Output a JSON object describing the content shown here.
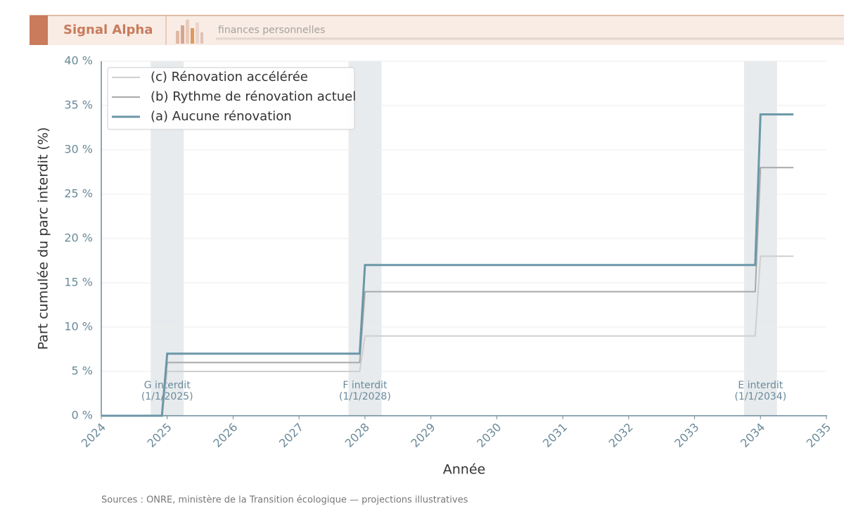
{
  "header": {
    "brand": "Signal Alpha",
    "tagline": "finances personnelles"
  },
  "chart_data": {
    "type": "line",
    "x_label": "Année",
    "y_label": "Part cumulée du parc interdit (%)",
    "x": [
      2024,
      2024.92,
      2025.0,
      2027.92,
      2028.0,
      2033.92,
      2034.0,
      2034.5
    ],
    "series": [
      {
        "name": "(c) Rénovation accélérée",
        "color": "#cfcfcf",
        "values": [
          0,
          0,
          5,
          5,
          9,
          9,
          18,
          18
        ]
      },
      {
        "name": "(b) Rythme de rénovation actuel",
        "color": "#a9a9a9",
        "values": [
          0,
          0,
          6,
          6,
          14,
          14,
          28,
          28
        ]
      },
      {
        "name": "(a) Aucune rénovation",
        "color": "#6b97a8",
        "values": [
          0,
          0,
          7,
          7,
          17,
          17,
          34,
          34
        ]
      }
    ],
    "annotations": [
      {
        "label": "G interdit",
        "date": "(1/1/2025)",
        "x": 2025,
        "band": [
          2024.75,
          2025.25
        ]
      },
      {
        "label": "F interdit",
        "date": "(1/1/2028)",
        "x": 2028,
        "band": [
          2027.75,
          2028.25
        ]
      },
      {
        "label": "E interdit",
        "date": "(1/1/2034)",
        "x": 2034,
        "band": [
          2033.75,
          2034.25
        ]
      }
    ],
    "xlim": [
      2024,
      2035
    ],
    "xticks": [
      2024,
      2025,
      2026,
      2027,
      2028,
      2029,
      2030,
      2031,
      2032,
      2033,
      2034,
      2035
    ],
    "ylim": [
      0,
      40
    ],
    "yticks": [
      {
        "value": 0,
        "label": "0 %"
      },
      {
        "value": 5,
        "label": "5 %"
      },
      {
        "value": 10,
        "label": "10 %"
      },
      {
        "value": 15,
        "label": "15 %"
      },
      {
        "value": 20,
        "label": "20 %"
      },
      {
        "value": 25,
        "label": "25 %"
      },
      {
        "value": 30,
        "label": "30 %"
      },
      {
        "value": 35,
        "label": "35 %"
      },
      {
        "value": 40,
        "label": "40 %"
      }
    ],
    "grid": true,
    "legend": "upper left",
    "source": "Sources : ONRE, ministère de la Transition écologique — projections illustratives"
  }
}
